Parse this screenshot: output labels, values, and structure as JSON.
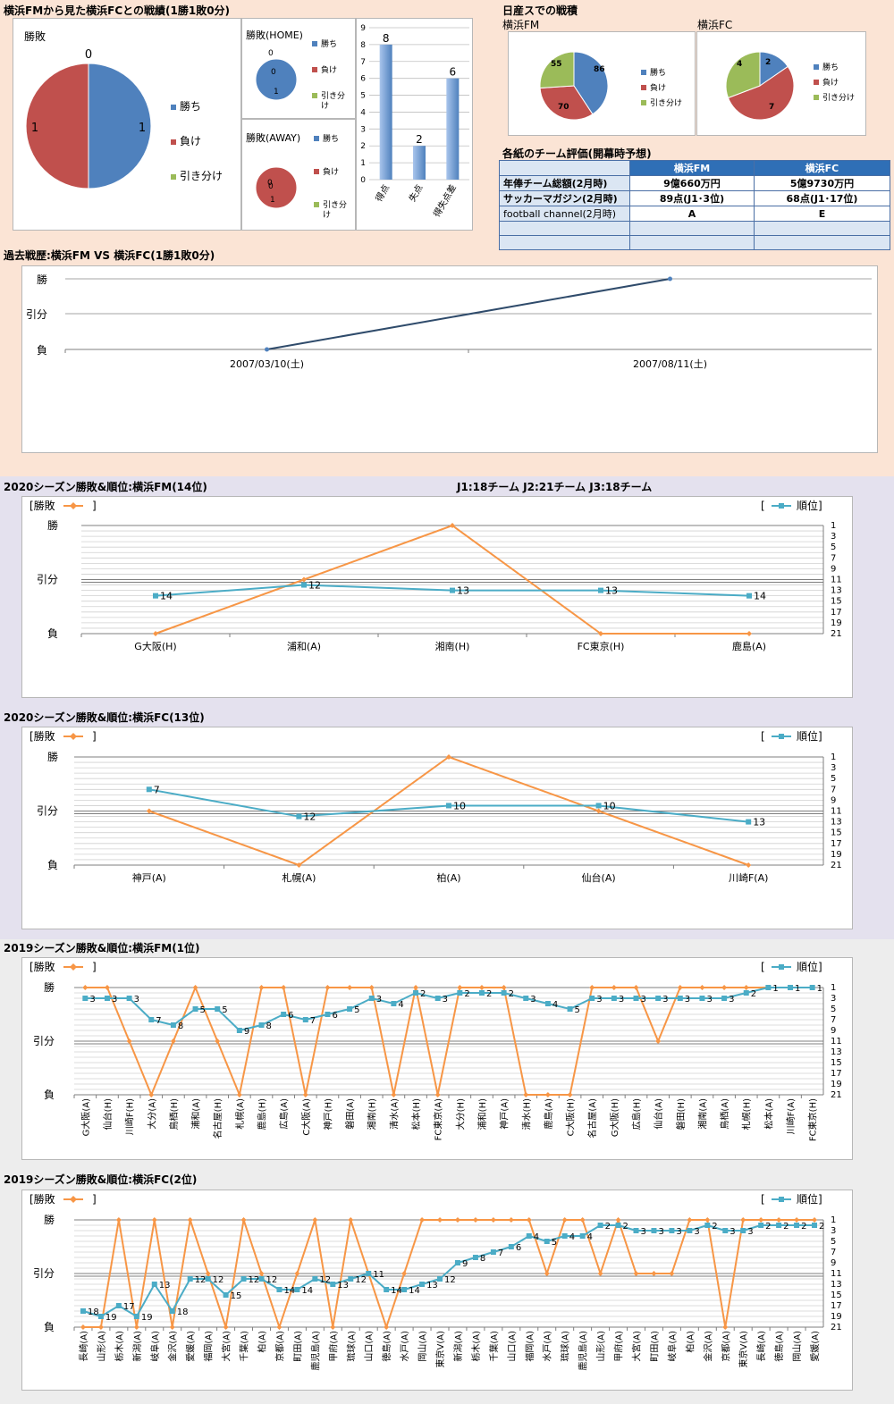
{
  "head_to_head": {
    "title": "横浜FMから見た横浜FCとの戦績(1勝1敗0分)",
    "legend": [
      "勝ち",
      "負け",
      "引き分け"
    ],
    "colors": {
      "win": "#4f81bd",
      "loss": "#c0504d",
      "draw": "#9bbb59"
    },
    "total": {
      "label": "勝敗",
      "win": 1,
      "loss": 1,
      "draw": 0
    },
    "home": {
      "label": "勝敗(HOME)",
      "win": 1,
      "loss": 0,
      "draw": 0
    },
    "away": {
      "label": "勝敗(AWAY)",
      "win": 0,
      "loss": 1,
      "draw": 0
    },
    "goals": {
      "ticks": [
        "0",
        "1",
        "2",
        "3",
        "4",
        "5",
        "6",
        "7",
        "8",
        "9"
      ],
      "categories": [
        "得点",
        "失点",
        "得失点差"
      ],
      "values": [
        8,
        2,
        6
      ]
    }
  },
  "nissan": {
    "title": "日産スでの戦積",
    "fm": {
      "label": "横浜FM",
      "win": 86,
      "loss": 70,
      "draw": 55
    },
    "fc": {
      "label": "横浜FC",
      "win": 2,
      "loss": 7,
      "draw": 4
    }
  },
  "evaluation": {
    "title": "各紙のチーム評価(開幕時予想)",
    "headers": [
      "横浜FM",
      "横浜FC"
    ],
    "rows": [
      {
        "label": "年俸チーム総額(2月時)",
        "fm": "9億660万円",
        "fc": "5億9730万円"
      },
      {
        "label": "サッカーマガジン(2月時)",
        "fm": "89点(J1･3位)",
        "fc": "68点(J1･17位)"
      },
      {
        "label": "football channel(2月時)",
        "fm": "A",
        "fc": "E"
      }
    ]
  },
  "history": {
    "title": "過去戦歴:横浜FM VS 横浜FC(1勝1敗0分)",
    "levels": [
      "勝",
      "引分",
      "負"
    ],
    "dates": [
      "2007/03/10(土)",
      "2007/08/11(土)"
    ],
    "results": [
      "負",
      "勝"
    ]
  },
  "league_info": "J1:18チーム J2:21チーム J3:18チーム",
  "ui": {
    "result_legend": "[勝敗",
    "bracket_close": "]",
    "rank_open": "[",
    "rank_legend": "順位]"
  },
  "chart_data": [
    {
      "type": "line",
      "title": "2020シーズン勝敗&順位:横浜FM(14位)",
      "x": [
        "G大阪(H)",
        "浦和(A)",
        "湘南(H)",
        "FC東京(H)",
        "鹿島(A)"
      ],
      "series": [
        {
          "name": "勝敗",
          "values": [
            0,
            1,
            2,
            0,
            0
          ]
        },
        {
          "name": "順位",
          "values": [
            14,
            12,
            13,
            13,
            14
          ]
        }
      ],
      "y_left": [
        "勝",
        "引分",
        "負"
      ],
      "rank_ticks": [
        "1",
        "3",
        "5",
        "7",
        "9",
        "11",
        "13",
        "15",
        "17",
        "19",
        "21"
      ],
      "rank_range": [
        1,
        21
      ]
    },
    {
      "type": "line",
      "title": "2020シーズン勝敗&順位:横浜FC(13位)",
      "x": [
        "神戸(A)",
        "札幌(A)",
        "柏(A)",
        "仙台(A)",
        "川崎F(A)"
      ],
      "series": [
        {
          "name": "勝敗",
          "values": [
            1,
            0,
            2,
            1,
            0
          ]
        },
        {
          "name": "順位",
          "values": [
            7,
            12,
            10,
            10,
            13
          ]
        }
      ],
      "y_left": [
        "勝",
        "引分",
        "負"
      ],
      "rank_ticks": [
        "1",
        "3",
        "5",
        "7",
        "9",
        "11",
        "13",
        "15",
        "17",
        "19",
        "21"
      ],
      "rank_range": [
        1,
        21
      ]
    },
    {
      "type": "line",
      "title": "2019シーズン勝敗&順位:横浜FM(1位)",
      "x": [
        "G大阪(A)",
        "仙台(H)",
        "川崎F(H)",
        "大分(A)",
        "鳥栖(H)",
        "浦和(A)",
        "名古屋(H)",
        "札幌(A)",
        "鹿島(H)",
        "広島(A)",
        "C大阪(A)",
        "神戸(H)",
        "磐田(A)",
        "湘南(H)",
        "清水(A)",
        "松本(H)",
        "FC東京(A)",
        "大分(H)",
        "浦和(H)",
        "神戸(A)",
        "清水(H)",
        "鹿島(A)",
        "C大阪(H)",
        "名古屋(A)",
        "G大阪(H)",
        "広島(H)",
        "仙台(A)",
        "磐田(H)",
        "湘南(A)",
        "鳥栖(A)",
        "札幌(H)",
        "松本(A)",
        "川崎F(A)",
        "FC東京(H)"
      ],
      "series": [
        {
          "name": "勝敗",
          "values": [
            2,
            2,
            1,
            0,
            1,
            2,
            1,
            0,
            2,
            2,
            0,
            2,
            2,
            2,
            0,
            2,
            0,
            2,
            2,
            2,
            0,
            0,
            0,
            2,
            2,
            2,
            1,
            2,
            2,
            2,
            2,
            2,
            2,
            2
          ]
        },
        {
          "name": "順位",
          "values": [
            3,
            3,
            3,
            7,
            8,
            5,
            5,
            9,
            8,
            6,
            7,
            6,
            5,
            3,
            4,
            2,
            3,
            2,
            2,
            2,
            3,
            4,
            5,
            3,
            3,
            3,
            3,
            3,
            3,
            3,
            2,
            1,
            1,
            1
          ]
        }
      ],
      "y_left": [
        "勝",
        "引分",
        "負"
      ],
      "rank_ticks": [
        "1",
        "3",
        "5",
        "7",
        "9",
        "11",
        "13",
        "15",
        "17",
        "19",
        "21"
      ],
      "rank_range": [
        1,
        21
      ]
    },
    {
      "type": "line",
      "title": "2019シーズン勝敗&順位:横浜FC(2位)",
      "x": [
        "長崎(A)",
        "山形(A)",
        "栃木(A)",
        "新潟(A)",
        "岐阜(A)",
        "金沢(A)",
        "愛媛(A)",
        "福岡(A)",
        "大宮(A)",
        "千葉(A)",
        "柏(A)",
        "京都(A)",
        "町田(A)",
        "鹿児島(A)",
        "甲府(A)",
        "琉球(A)",
        "山口(A)",
        "徳島(A)",
        "水戸(A)",
        "岡山(A)",
        "東京V(A)",
        "新潟(A)",
        "栃木(A)",
        "千葉(A)",
        "山口(A)",
        "福岡(A)",
        "水戸(A)",
        "琉球(A)",
        "鹿児島(A)",
        "山形(A)",
        "甲府(A)",
        "大宮(A)",
        "町田(A)",
        "岐阜(A)",
        "柏(A)",
        "金沢(A)",
        "京都(A)",
        "東京V(A)",
        "長崎(A)",
        "徳島(A)",
        "岡山(A)",
        "愛媛(A)"
      ],
      "series": [
        {
          "name": "勝敗",
          "values": [
            0,
            0,
            2,
            0,
            2,
            0,
            2,
            1,
            0,
            2,
            1,
            0,
            1,
            2,
            0,
            2,
            1,
            0,
            1,
            2,
            2,
            2,
            2,
            2,
            2,
            2,
            1,
            2,
            2,
            1,
            2,
            1,
            1,
            1,
            2,
            2,
            0,
            2,
            2,
            2,
            2,
            2
          ]
        },
        {
          "name": "順位",
          "values": [
            18,
            19,
            17,
            19,
            13,
            18,
            12,
            12,
            15,
            12,
            12,
            14,
            14,
            12,
            13,
            12,
            11,
            14,
            14,
            13,
            12,
            9,
            8,
            7,
            6,
            4,
            5,
            4,
            4,
            2,
            2,
            3,
            3,
            3,
            3,
            2,
            3,
            3,
            2,
            2,
            2,
            2
          ]
        }
      ],
      "y_left": [
        "勝",
        "引分",
        "負"
      ],
      "rank_ticks": [
        "1",
        "3",
        "5",
        "7",
        "9",
        "11",
        "13",
        "15",
        "17",
        "19",
        "21"
      ],
      "rank_range": [
        1,
        21
      ]
    }
  ]
}
